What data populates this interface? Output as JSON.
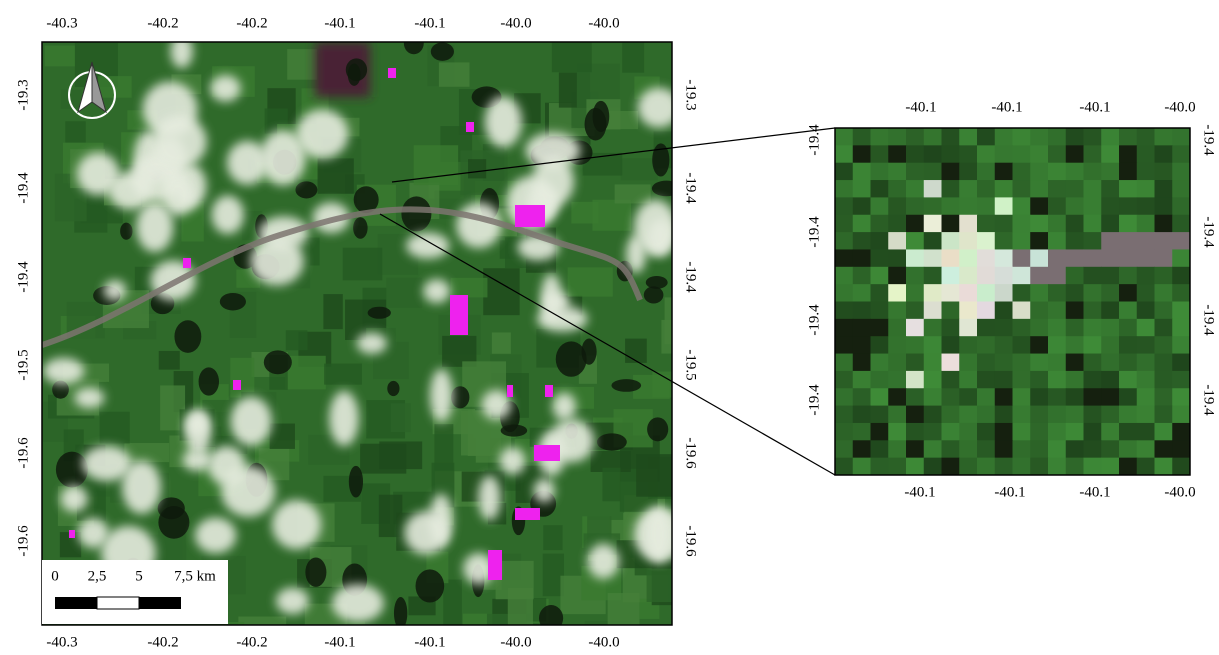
{
  "map": {
    "x_ticks_top": [
      "-40.3",
      "-40.2",
      "-40.2",
      "-40.1",
      "-40.1",
      "-40.0",
      "-40.0"
    ],
    "x_ticks_bottom": [
      "-40.3",
      "-40.2",
      "-40.2",
      "-40.1",
      "-40.1",
      "-40.0",
      "-40.0"
    ],
    "y_ticks_left": [
      "-19.3",
      "-19.4",
      "-19.4",
      "-19.5",
      "-19.6",
      "-19.6"
    ],
    "y_ticks_right": [
      "-19.3",
      "-19.4",
      "-19.4",
      "-19.5",
      "-19.6",
      "-19.6"
    ]
  },
  "inset": {
    "x_ticks_top": [
      "-40.1",
      "-40.1",
      "-40.1",
      "-40.0"
    ],
    "x_ticks_bottom": [
      "-40.1",
      "-40.1",
      "-40.1",
      "-40.0"
    ],
    "y_ticks_left": [
      "-19.4",
      "-19.4",
      "-19.4",
      "-19.4"
    ],
    "y_ticks_right": [
      "-19.4",
      "-19.4",
      "-19.4",
      "-19.4"
    ]
  },
  "scale_bar": {
    "labels": [
      "0",
      "2,5",
      "5",
      "7,5 km"
    ]
  }
}
